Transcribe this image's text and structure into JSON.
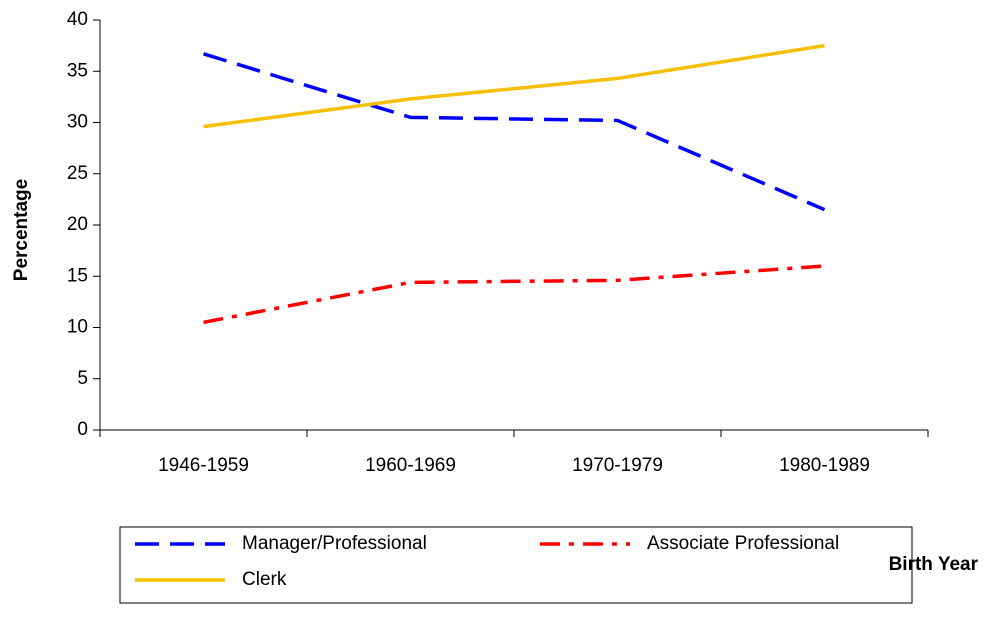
{
  "chart_data": {
    "type": "line",
    "x_label": "Birth Year",
    "y_label": "Percentage",
    "categories": [
      "1946-1959",
      "1960-1969",
      "1970-1979",
      "1980-1989"
    ],
    "series": [
      {
        "name": "Manager/Professional",
        "color": "#0000ff",
        "dash": "long-dash",
        "values": [
          36.7,
          30.5,
          30.2,
          21.5
        ]
      },
      {
        "name": "Associate Professional",
        "color": "#ff0000",
        "dash": "dash-dot",
        "values": [
          10.5,
          14.4,
          14.6,
          16.0
        ]
      },
      {
        "name": "Clerk",
        "color": "#f5c000",
        "dash": "solid",
        "values": [
          29.6,
          32.3,
          34.3,
          37.5
        ]
      }
    ],
    "ylim": [
      0,
      40
    ],
    "yticks": [
      0,
      5,
      10,
      15,
      20,
      25,
      30,
      35,
      40
    ],
    "grid": false,
    "legend": "bottom"
  }
}
